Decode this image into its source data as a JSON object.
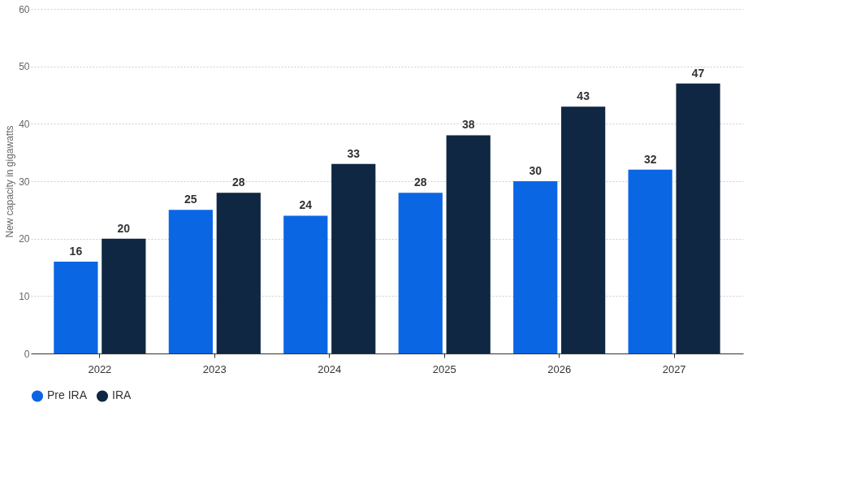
{
  "chart_data": {
    "type": "bar",
    "ylabel": "New capacity in gigawatts",
    "categories": [
      "2022",
      "2023",
      "2024",
      "2025",
      "2026",
      "2027"
    ],
    "series": [
      {
        "name": "Pre IRA",
        "color": "#0b66e4",
        "values": [
          16,
          25,
          24,
          28,
          30,
          32
        ]
      },
      {
        "name": "IRA",
        "color": "#0f2742",
        "values": [
          20,
          28,
          33,
          38,
          43,
          47
        ]
      }
    ],
    "ylim": [
      0,
      60
    ],
    "yticks": [
      0,
      10,
      20,
      30,
      40,
      50,
      60
    ],
    "grid": "y",
    "legend": "bottom",
    "data_labels": true
  }
}
